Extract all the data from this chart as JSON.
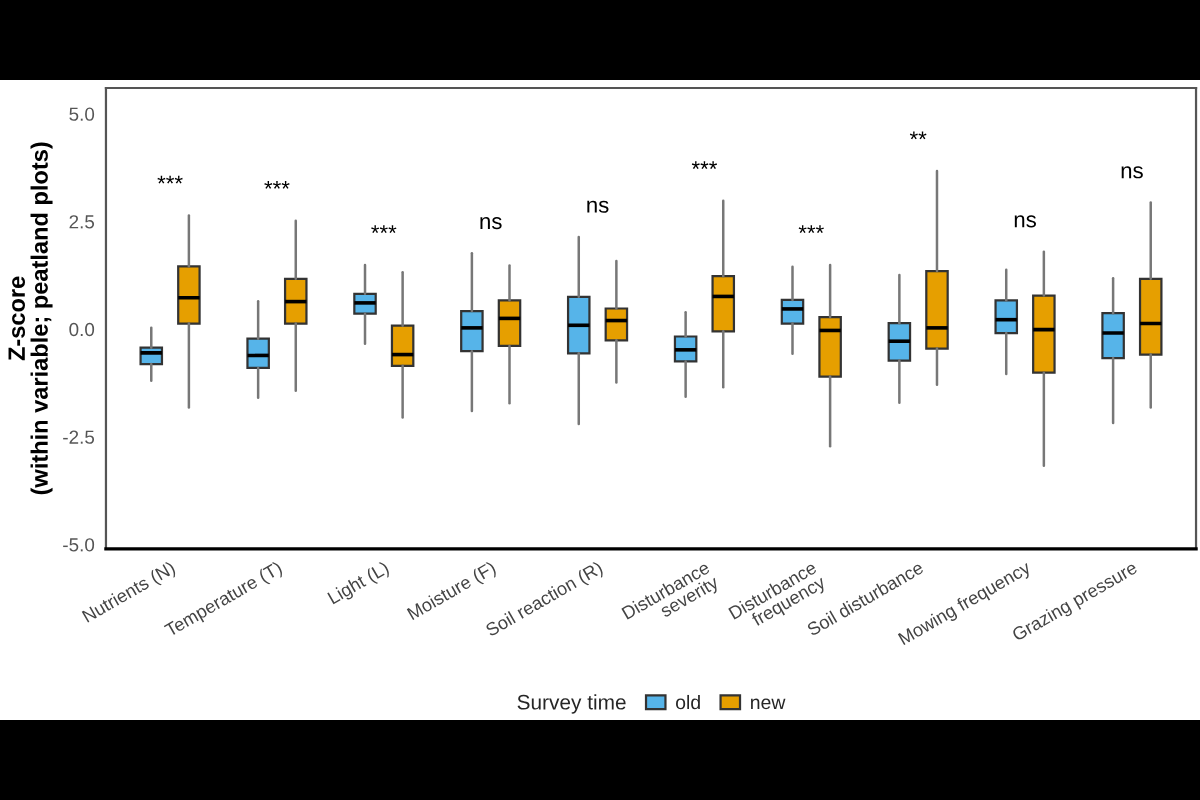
{
  "chart_data": {
    "type": "box",
    "ylabel": "Z-score\n(within variable; peatland plots)",
    "legend_title": "Survey time",
    "legend": "bottom",
    "grid": false,
    "categories": [
      "Nutrients (N)",
      "Temperature (T)",
      "Light (L)",
      "Moisture (F)",
      "Soil reaction (R)",
      "Disturbance\nseverity",
      "Disturbance\nfrequency",
      "Soil disturbance",
      "Mowing frequency",
      "Grazing pressure"
    ],
    "ylim": [
      -5.1,
      5.6
    ],
    "yticks": [
      {
        "value": 5,
        "label": "5.0"
      },
      {
        "value": 2.5,
        "label": "2.5"
      },
      {
        "value": 0,
        "label": "0.0"
      },
      {
        "value": -2.5,
        "label": "-2.5"
      },
      {
        "value": -5,
        "label": "-5.0"
      }
    ],
    "series": [
      {
        "name": "old",
        "color": "#56b4e9",
        "boxes": [
          {
            "low": -1.2,
            "q1": -0.81,
            "median": -0.55,
            "q3": -0.43,
            "high": 0.03
          },
          {
            "low": -1.59,
            "q1": -0.9,
            "median": -0.61,
            "q3": -0.22,
            "high": 0.65
          },
          {
            "low": -0.34,
            "q1": 0.36,
            "median": 0.61,
            "q3": 0.82,
            "high": 1.49
          },
          {
            "low": -1.9,
            "q1": -0.51,
            "median": 0.03,
            "q3": 0.42,
            "high": 1.76
          },
          {
            "low": -2.2,
            "q1": -0.56,
            "median": 0.09,
            "q3": 0.75,
            "high": 2.14
          },
          {
            "low": -1.57,
            "q1": -0.75,
            "median": -0.48,
            "q3": -0.17,
            "high": 0.39
          },
          {
            "low": -0.57,
            "q1": 0.13,
            "median": 0.47,
            "q3": 0.68,
            "high": 1.45
          },
          {
            "low": -1.71,
            "q1": -0.73,
            "median": -0.28,
            "q3": 0.14,
            "high": 1.26
          },
          {
            "low": -1.04,
            "q1": -0.09,
            "median": 0.22,
            "q3": 0.67,
            "high": 1.38
          },
          {
            "low": -2.18,
            "q1": -0.67,
            "median": -0.09,
            "q3": 0.37,
            "high": 1.18
          }
        ]
      },
      {
        "name": "new",
        "color": "#e69f00",
        "boxes": [
          {
            "low": -1.82,
            "q1": 0.13,
            "median": 0.73,
            "q3": 1.46,
            "high": 2.64
          },
          {
            "low": -1.43,
            "q1": 0.13,
            "median": 0.64,
            "q3": 1.17,
            "high": 2.52
          },
          {
            "low": -2.05,
            "q1": -0.85,
            "median": -0.59,
            "q3": 0.08,
            "high": 1.32
          },
          {
            "low": -1.72,
            "q1": -0.39,
            "median": 0.25,
            "q3": 0.67,
            "high": 1.48
          },
          {
            "low": -1.24,
            "q1": -0.26,
            "median": 0.2,
            "q3": 0.48,
            "high": 1.58
          },
          {
            "low": -1.35,
            "q1": -0.05,
            "median": 0.76,
            "q3": 1.23,
            "high": 2.98
          },
          {
            "low": -2.72,
            "q1": -1.1,
            "median": -0.03,
            "q3": 0.28,
            "high": 1.49
          },
          {
            "low": -1.29,
            "q1": -0.45,
            "median": 0.03,
            "q3": 1.35,
            "high": 3.67
          },
          {
            "low": -3.17,
            "q1": -1.01,
            "median": -0.01,
            "q3": 0.78,
            "high": 1.8
          },
          {
            "low": -1.82,
            "q1": -0.59,
            "median": 0.13,
            "q3": 1.17,
            "high": 2.94
          }
        ]
      }
    ],
    "annotations": [
      "***",
      "***",
      "***",
      "ns",
      "ns",
      "***",
      "***",
      "**",
      "ns",
      "ns"
    ]
  }
}
